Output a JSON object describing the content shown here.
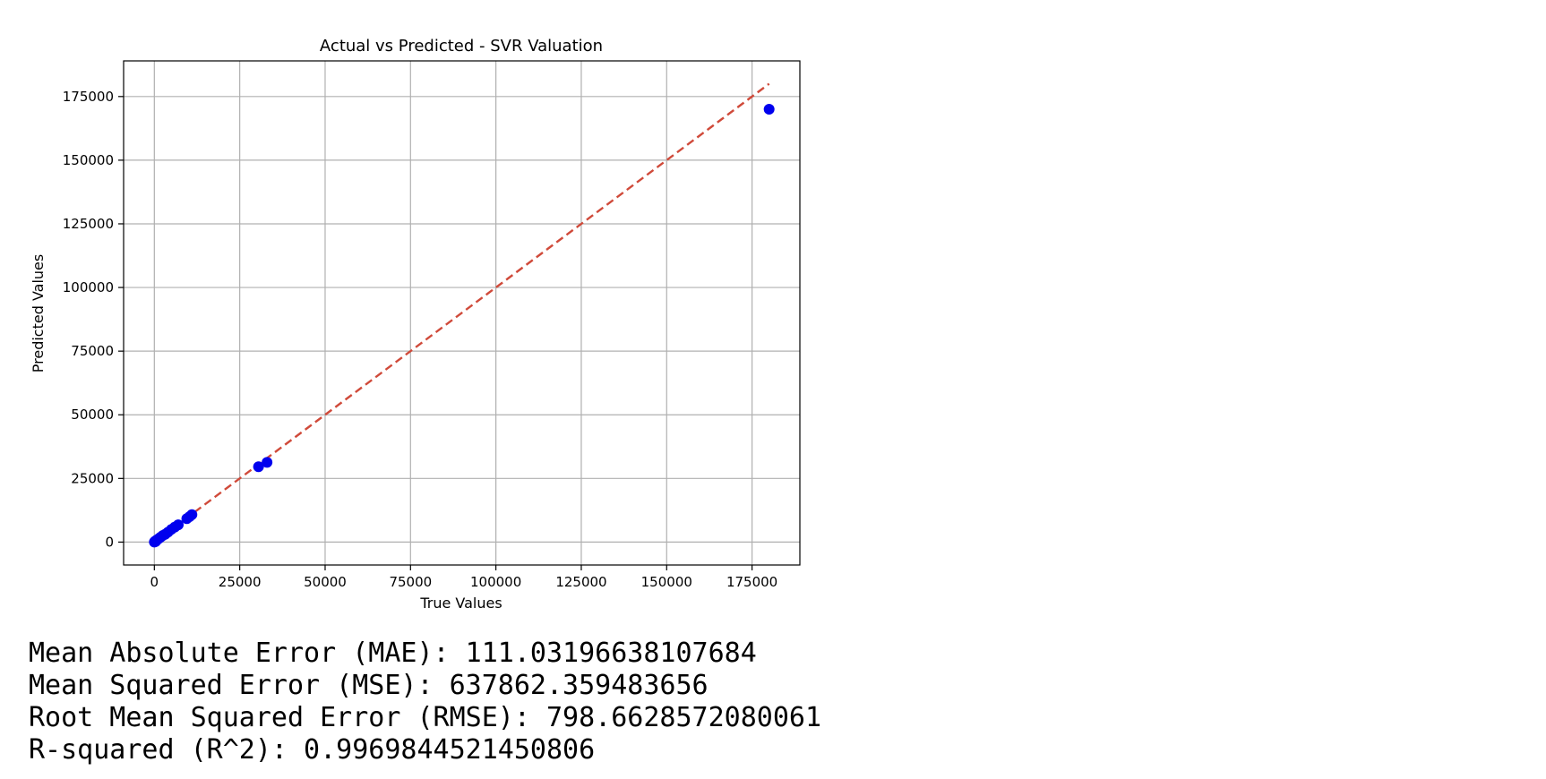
{
  "chart_data": {
    "type": "scatter",
    "title": "Actual vs Predicted - SVR Valuation",
    "xlabel": "True Values",
    "ylabel": "Predicted Values",
    "xlim": [
      -9000,
      189000
    ],
    "ylim": [
      -9000,
      189000
    ],
    "xticks": [
      "0",
      "25000",
      "50000",
      "75000",
      "100000",
      "125000",
      "150000",
      "175000"
    ],
    "yticks": [
      "0",
      "25000",
      "50000",
      "75000",
      "100000",
      "125000",
      "150000",
      "175000"
    ],
    "grid": true,
    "reference_line": {
      "from": [
        0,
        0
      ],
      "to": [
        180000,
        180000
      ],
      "style": "dashed",
      "color": "#d04a3a"
    },
    "point_color": "#0000ee",
    "points": [
      {
        "x": 0,
        "y": 0
      },
      {
        "x": 150,
        "y": 300
      },
      {
        "x": 400,
        "y": 250
      },
      {
        "x": 700,
        "y": 800
      },
      {
        "x": 1200,
        "y": 1300
      },
      {
        "x": 1800,
        "y": 1900
      },
      {
        "x": 2500,
        "y": 2600
      },
      {
        "x": 3200,
        "y": 3100
      },
      {
        "x": 4000,
        "y": 3900
      },
      {
        "x": 5000,
        "y": 5000
      },
      {
        "x": 6000,
        "y": 5900
      },
      {
        "x": 7000,
        "y": 6800
      },
      {
        "x": 9500,
        "y": 9200
      },
      {
        "x": 10300,
        "y": 10000
      },
      {
        "x": 11000,
        "y": 10800
      },
      {
        "x": 30500,
        "y": 29600
      },
      {
        "x": 33000,
        "y": 31300
      },
      {
        "x": 180000,
        "y": 170000
      }
    ]
  },
  "metrics": {
    "mae": "Mean Absolute Error (MAE): 111.03196638107684",
    "mse": "Mean Squared Error (MSE): 637862.359483656",
    "rmse": "Root Mean Squared Error (RMSE): 798.6628572080061",
    "r2": "R-squared (R^2): 0.9969844521450806"
  }
}
